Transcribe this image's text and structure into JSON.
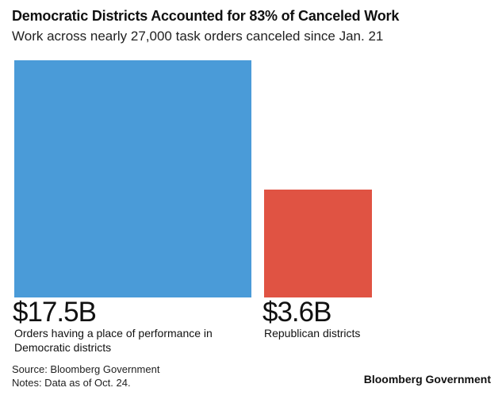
{
  "chart_data": {
    "type": "area-squares",
    "title": "Democratic Districts Accounted for 83% of Canceled Work",
    "subtitle": "Work across nearly 27,000 task orders canceled since Jan. 21",
    "series": [
      {
        "name": "Democratic districts",
        "value": 17.5,
        "value_label": "$17.5B",
        "description": "Orders having a place of performance in Democratic districts",
        "color": "#4a9bd8"
      },
      {
        "name": "Republican districts",
        "value": 3.6,
        "value_label": "$3.6B",
        "description": "Republican districts",
        "color": "#e05343"
      }
    ],
    "unit": "billion USD"
  },
  "footer": {
    "source": "Source: Bloomberg Government",
    "notes": "Notes: Data as of Oct. 24.",
    "logo": "Bloomberg Government"
  }
}
